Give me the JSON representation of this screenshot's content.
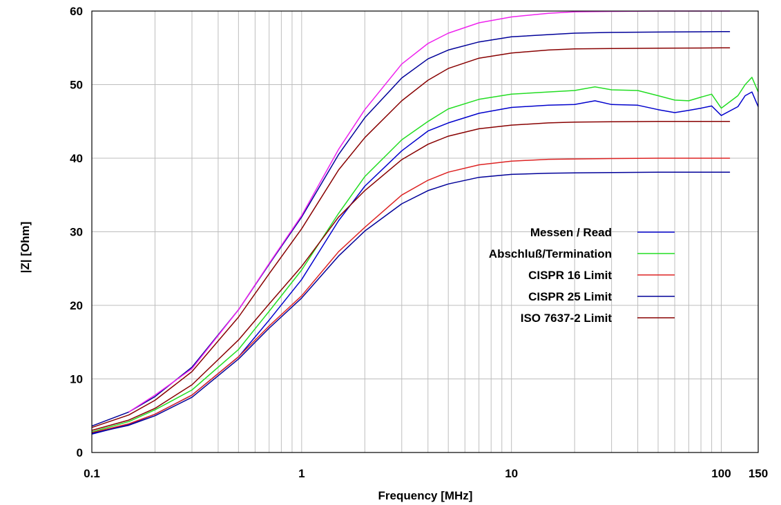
{
  "chart_data": {
    "type": "line",
    "xscale": "log",
    "xlim": [
      0.1,
      150
    ],
    "ylim": [
      0,
      60
    ],
    "xlabel": "Frequency [MHz]",
    "ylabel": "|Z| [Ohm]",
    "grid": true,
    "legend_position": "center-right",
    "xticks": [
      {
        "value": 0.1,
        "label": "0.1"
      },
      {
        "value": 1,
        "label": "1"
      },
      {
        "value": 10,
        "label": "10"
      },
      {
        "value": 100,
        "label": "100"
      },
      {
        "value": 150,
        "label": "150"
      }
    ],
    "yticks": [
      {
        "value": 0,
        "label": "0"
      },
      {
        "value": 10,
        "label": "10"
      },
      {
        "value": 20,
        "label": "20"
      },
      {
        "value": 30,
        "label": "30"
      },
      {
        "value": 40,
        "label": "40"
      },
      {
        "value": 50,
        "label": "50"
      },
      {
        "value": 60,
        "label": "60"
      }
    ],
    "series": [
      {
        "name": "Messen / Read",
        "color": "#0000cc",
        "in_legend": true,
        "x": [
          0.1,
          0.15,
          0.2,
          0.3,
          0.5,
          0.7,
          1,
          1.5,
          2,
          3,
          4,
          5,
          7,
          10,
          15,
          20,
          25,
          30,
          40,
          50,
          60,
          70,
          80,
          90,
          100,
          120,
          130,
          140,
          150
        ],
        "y": [
          2.5,
          3.8,
          5.2,
          7.8,
          13.0,
          18.0,
          23.5,
          31.5,
          36.2,
          41.0,
          43.7,
          44.8,
          46.1,
          46.9,
          47.2,
          47.3,
          47.8,
          47.3,
          47.2,
          46.6,
          46.2,
          46.5,
          46.8,
          47.1,
          45.8,
          47.0,
          48.5,
          49.0,
          47.0
        ]
      },
      {
        "name": "Abschluß/Termination",
        "color": "#22dd22",
        "in_legend": true,
        "x": [
          0.1,
          0.15,
          0.2,
          0.3,
          0.5,
          0.7,
          1,
          1.5,
          2,
          3,
          4,
          5,
          7,
          10,
          15,
          20,
          25,
          30,
          40,
          50,
          60,
          70,
          80,
          90,
          100,
          120,
          130,
          140,
          150
        ],
        "y": [
          2.8,
          4.2,
          5.8,
          8.5,
          14.0,
          19.2,
          24.8,
          32.5,
          37.5,
          42.5,
          45.0,
          46.7,
          48.0,
          48.7,
          49.0,
          49.2,
          49.7,
          49.3,
          49.2,
          48.5,
          47.9,
          47.8,
          48.3,
          48.7,
          46.8,
          48.5,
          50.0,
          51.0,
          49.0
        ]
      },
      {
        "name": "CISPR 16 Limit",
        "color": "#dd2222",
        "in_legend": true,
        "x": [
          0.1,
          0.15,
          0.2,
          0.3,
          0.5,
          0.7,
          1,
          1.5,
          2,
          3,
          4,
          5,
          7,
          10,
          15,
          20,
          30,
          50,
          100,
          110
        ],
        "y": [
          2.7,
          3.9,
          5.2,
          7.8,
          13.0,
          17.2,
          21.3,
          27.3,
          30.6,
          35.0,
          37.0,
          38.1,
          39.1,
          39.6,
          39.85,
          39.9,
          39.95,
          40.0,
          40.0,
          40.0
        ]
      },
      {
        "name": "CISPR 25 Limit",
        "color": "#000099",
        "in_legend": true,
        "x": [
          0.1,
          0.15,
          0.2,
          0.3,
          0.5,
          0.7,
          1,
          1.5,
          2,
          3,
          4,
          5,
          7,
          10,
          15,
          20,
          30,
          50,
          100,
          110
        ],
        "y": [
          2.6,
          3.7,
          5.0,
          7.5,
          12.7,
          16.9,
          21.0,
          26.7,
          30.1,
          33.8,
          35.6,
          36.5,
          37.4,
          37.8,
          37.95,
          38.0,
          38.05,
          38.1,
          38.1,
          38.1
        ]
      },
      {
        "name": "ISO 7637-2 Limit",
        "color": "#880000",
        "in_legend": true,
        "x": [
          0.1,
          0.15,
          0.2,
          0.3,
          0.5,
          0.7,
          1,
          1.5,
          2,
          3,
          4,
          5,
          7,
          10,
          15,
          20,
          30,
          50,
          100,
          110
        ],
        "y": [
          3.0,
          4.4,
          6.0,
          9.2,
          15.3,
          20.2,
          25.3,
          32.0,
          35.6,
          39.8,
          41.9,
          43.0,
          44.0,
          44.5,
          44.8,
          44.9,
          44.95,
          45.0,
          45.0,
          45.0
        ]
      },
      {
        "name": "",
        "color": "#880000",
        "in_legend": false,
        "x": [
          0.1,
          0.15,
          0.2,
          0.3,
          0.5,
          0.7,
          1,
          1.5,
          2,
          3,
          4,
          5,
          7,
          10,
          15,
          20,
          30,
          50,
          100,
          110
        ],
        "y": [
          3.4,
          5.1,
          7.1,
          11.0,
          18.4,
          24.3,
          30.4,
          38.4,
          42.8,
          47.8,
          50.6,
          52.2,
          53.6,
          54.3,
          54.7,
          54.85,
          54.9,
          54.95,
          55.0,
          55.0
        ]
      },
      {
        "name": "",
        "color": "#000099",
        "in_legend": false,
        "x": [
          0.1,
          0.15,
          0.2,
          0.3,
          0.5,
          0.7,
          1,
          1.5,
          2,
          3,
          4,
          5,
          7,
          10,
          15,
          20,
          30,
          50,
          100,
          110
        ],
        "y": [
          3.6,
          5.5,
          7.6,
          11.6,
          19.4,
          25.6,
          32.0,
          40.5,
          45.5,
          50.9,
          53.5,
          54.7,
          55.8,
          56.5,
          56.8,
          57.0,
          57.1,
          57.15,
          57.2,
          57.2
        ]
      },
      {
        "name": "",
        "color": "#ee22ee",
        "in_legend": false,
        "x": [
          0.15,
          0.2,
          0.3,
          0.5,
          0.7,
          1,
          1.5,
          2,
          3,
          4,
          5,
          7,
          10,
          15,
          20,
          30,
          50,
          100,
          110
        ],
        "y": [
          5.5,
          7.8,
          11.4,
          19.4,
          25.7,
          32.2,
          41.2,
          46.6,
          52.8,
          55.6,
          57.0,
          58.4,
          59.2,
          59.7,
          59.9,
          59.95,
          60.0,
          60.0,
          60.0
        ]
      }
    ]
  }
}
